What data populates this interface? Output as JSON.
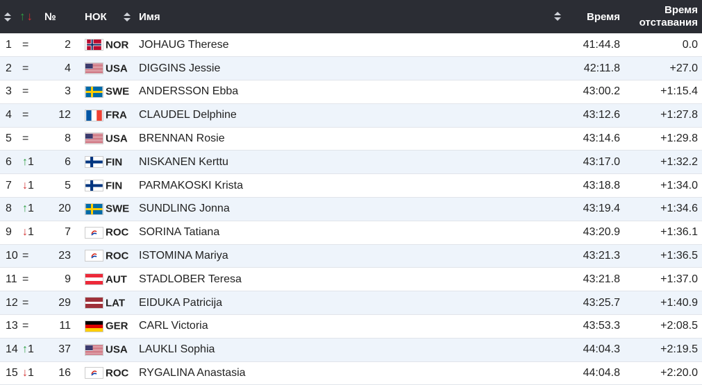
{
  "header": {
    "num": "№",
    "noc": "НОК",
    "name": "Имя",
    "time": "Время",
    "gap_line1": "Время",
    "gap_line2": "отставания"
  },
  "rows": [
    {
      "rank": "1",
      "change": "=",
      "dir": "none",
      "bib": "2",
      "noc": "NOR",
      "flag": "nor",
      "name": "JOHAUG Therese",
      "time": "41:44.8",
      "gap": "0.0"
    },
    {
      "rank": "2",
      "change": "=",
      "dir": "none",
      "bib": "4",
      "noc": "USA",
      "flag": "usa",
      "name": "DIGGINS Jessie",
      "time": "42:11.8",
      "gap": "+27.0"
    },
    {
      "rank": "3",
      "change": "=",
      "dir": "none",
      "bib": "3",
      "noc": "SWE",
      "flag": "swe",
      "name": "ANDERSSON Ebba",
      "time": "43:00.2",
      "gap": "+1:15.4"
    },
    {
      "rank": "4",
      "change": "=",
      "dir": "none",
      "bib": "12",
      "noc": "FRA",
      "flag": "fra",
      "name": "CLAUDEL Delphine",
      "time": "43:12.6",
      "gap": "+1:27.8"
    },
    {
      "rank": "5",
      "change": "=",
      "dir": "none",
      "bib": "8",
      "noc": "USA",
      "flag": "usa",
      "name": "BRENNAN Rosie",
      "time": "43:14.6",
      "gap": "+1:29.8"
    },
    {
      "rank": "6",
      "change": "1",
      "dir": "up",
      "bib": "6",
      "noc": "FIN",
      "flag": "fin",
      "name": "NISKANEN Kerttu",
      "time": "43:17.0",
      "gap": "+1:32.2"
    },
    {
      "rank": "7",
      "change": "1",
      "dir": "down",
      "bib": "5",
      "noc": "FIN",
      "flag": "fin",
      "name": "PARMAKOSKI Krista",
      "time": "43:18.8",
      "gap": "+1:34.0"
    },
    {
      "rank": "8",
      "change": "1",
      "dir": "up",
      "bib": "20",
      "noc": "SWE",
      "flag": "swe",
      "name": "SUNDLING Jonna",
      "time": "43:19.4",
      "gap": "+1:34.6"
    },
    {
      "rank": "9",
      "change": "1",
      "dir": "down",
      "bib": "7",
      "noc": "ROC",
      "flag": "roc",
      "name": "SORINA Tatiana",
      "time": "43:20.9",
      "gap": "+1:36.1"
    },
    {
      "rank": "10",
      "change": "=",
      "dir": "none",
      "bib": "23",
      "noc": "ROC",
      "flag": "roc",
      "name": "ISTOMINA Mariya",
      "time": "43:21.3",
      "gap": "+1:36.5"
    },
    {
      "rank": "11",
      "change": "=",
      "dir": "none",
      "bib": "9",
      "noc": "AUT",
      "flag": "aut",
      "name": "STADLOBER Teresa",
      "time": "43:21.8",
      "gap": "+1:37.0"
    },
    {
      "rank": "12",
      "change": "=",
      "dir": "none",
      "bib": "29",
      "noc": "LAT",
      "flag": "lat",
      "name": "EIDUKA Patricija",
      "time": "43:25.7",
      "gap": "+1:40.9"
    },
    {
      "rank": "13",
      "change": "=",
      "dir": "none",
      "bib": "11",
      "noc": "GER",
      "flag": "ger",
      "name": "CARL Victoria",
      "time": "43:53.3",
      "gap": "+2:08.5"
    },
    {
      "rank": "14",
      "change": "1",
      "dir": "up",
      "bib": "37",
      "noc": "USA",
      "flag": "usa",
      "name": "LAUKLI Sophia",
      "time": "44:04.3",
      "gap": "+2:19.5"
    },
    {
      "rank": "15",
      "change": "1",
      "dir": "down",
      "bib": "16",
      "noc": "ROC",
      "flag": "roc",
      "name": "RYGALINA Anastasia",
      "time": "44:04.8",
      "gap": "+2:20.0"
    }
  ]
}
